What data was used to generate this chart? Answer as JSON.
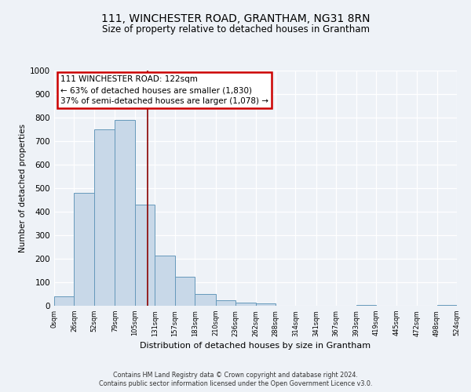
{
  "title_line1": "111, WINCHESTER ROAD, GRANTHAM, NG31 8RN",
  "title_line2": "Size of property relative to detached houses in Grantham",
  "xlabel": "Distribution of detached houses by size in Grantham",
  "ylabel": "Number of detached properties",
  "bar_edges": [
    0,
    26,
    52,
    79,
    105,
    131,
    157,
    183,
    210,
    236,
    262,
    288,
    314,
    341,
    367,
    393,
    419,
    445,
    472,
    498,
    524
  ],
  "bar_heights": [
    40,
    480,
    750,
    790,
    430,
    215,
    125,
    50,
    25,
    15,
    10,
    0,
    0,
    0,
    0,
    5,
    0,
    0,
    0,
    5
  ],
  "bar_color": "#c8d8e8",
  "bar_edge_color": "#6699bb",
  "property_size": 122,
  "vline_color": "#8b0000",
  "annotation_box_color": "#cc0000",
  "annotation_text_line1": "111 WINCHESTER ROAD: 122sqm",
  "annotation_text_line2": "← 63% of detached houses are smaller (1,830)",
  "annotation_text_line3": "37% of semi-detached houses are larger (1,078) →",
  "xlim": [
    0,
    524
  ],
  "ylim": [
    0,
    1000
  ],
  "tick_labels": [
    "0sqm",
    "26sqm",
    "52sqm",
    "79sqm",
    "105sqm",
    "131sqm",
    "157sqm",
    "183sqm",
    "210sqm",
    "236sqm",
    "262sqm",
    "288sqm",
    "314sqm",
    "341sqm",
    "367sqm",
    "393sqm",
    "419sqm",
    "445sqm",
    "472sqm",
    "498sqm",
    "524sqm"
  ],
  "tick_positions": [
    0,
    26,
    52,
    79,
    105,
    131,
    157,
    183,
    210,
    236,
    262,
    288,
    314,
    341,
    367,
    393,
    419,
    445,
    472,
    498,
    524
  ],
  "footer_line1": "Contains HM Land Registry data © Crown copyright and database right 2024.",
  "footer_line2": "Contains public sector information licensed under the Open Government Licence v3.0.",
  "bg_color": "#eef2f7",
  "plot_bg_color": "#eef2f7",
  "yticks": [
    0,
    100,
    200,
    300,
    400,
    500,
    600,
    700,
    800,
    900,
    1000
  ]
}
